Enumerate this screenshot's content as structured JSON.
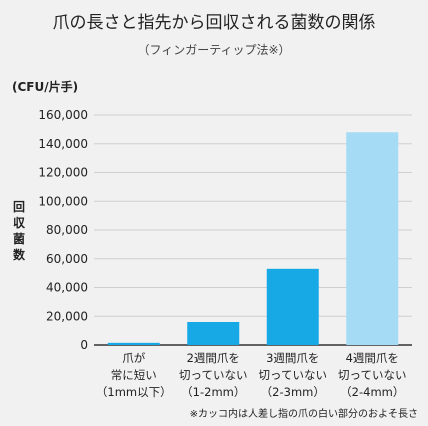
{
  "chart_data": {
    "type": "bar",
    "title": "爪の長さと指先から回収される菌数の関係",
    "subtitle": "（フィンガーティップ法※）",
    "unit_label": "(CFU/片手)",
    "ylabel": "回収菌数",
    "ylim": [
      0,
      160000
    ],
    "yticks": [
      "0",
      "20,000",
      "40,000",
      "60,000",
      "80,000",
      "100,000",
      "120,000",
      "140,000",
      "160,000"
    ],
    "grid": true,
    "categories": [
      [
        "爪が",
        "常に短い",
        "（1mm以下）"
      ],
      [
        "2週間爪を",
        "切っていない",
        "（1-2mm）"
      ],
      [
        "3週間爪を",
        "切っていない",
        "（2-3mm）"
      ],
      [
        "4週間爪を",
        "切っていない",
        "（2-4mm）"
      ]
    ],
    "values": [
      1500,
      16000,
      53000,
      148000
    ],
    "colors": [
      "#17a9e6",
      "#17a9e6",
      "#17a9e6",
      "#a6dbf5"
    ],
    "footnote": "※カッコ内は人差し指の爪の白い部分のおよそ長さ"
  }
}
